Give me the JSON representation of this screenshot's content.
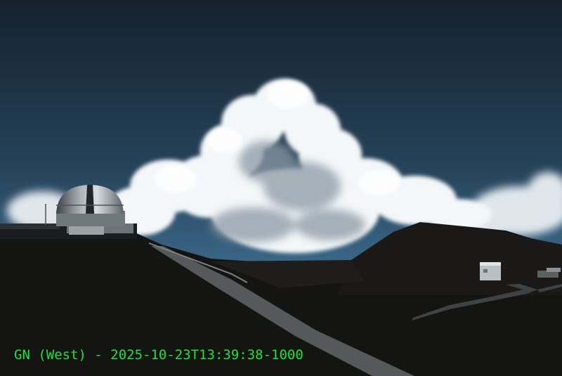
{
  "camera_overlay": {
    "caption": "GN (West) - 2025-10-23T13:39:38-1000",
    "caption_color": "#22e03a"
  },
  "scene": {
    "sky_top_color": "#15222e",
    "sky_horizon_color": "#3f6d8f",
    "cloud_color": "#f2f6f8",
    "cloud_shadow_color": "#8a98a4",
    "ground_color": "#141412",
    "road_color": "#56595a"
  }
}
